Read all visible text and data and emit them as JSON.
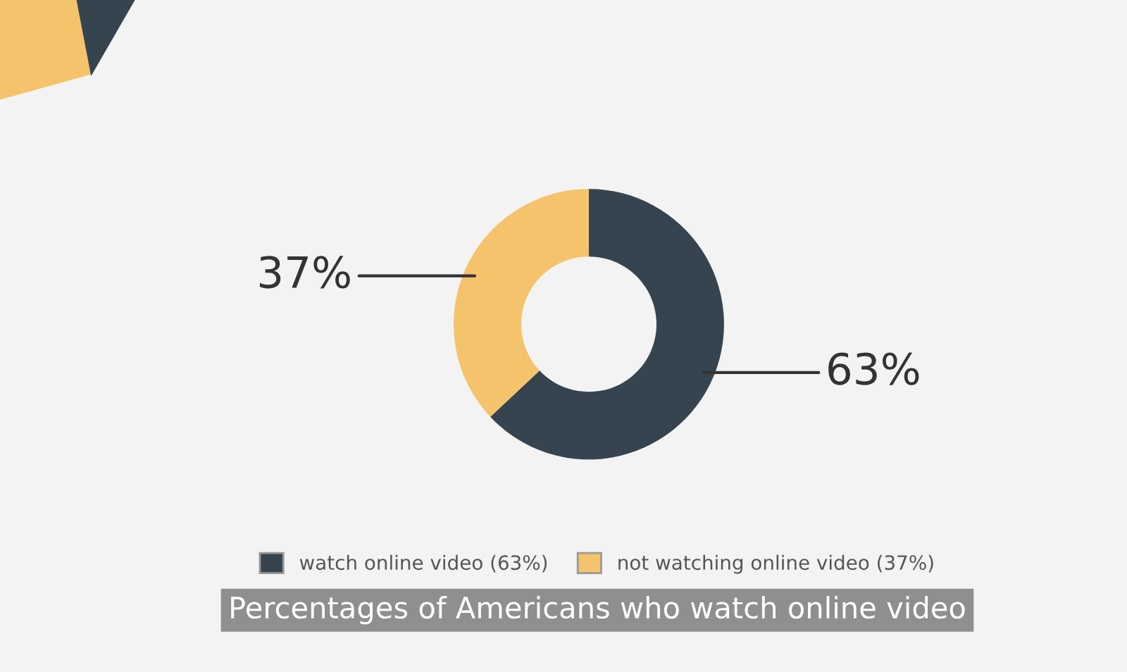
{
  "chart_data": {
    "type": "donut",
    "title": "Percentages of Americans who watch online video",
    "categories": [
      "watch online video (63%)",
      "not watching online video (37%)"
    ],
    "values": [
      63,
      37
    ],
    "colors": [
      "#36444f",
      "#f5c36b"
    ],
    "value_labels": [
      "63%",
      "37%"
    ],
    "legend": "bottom"
  }
}
